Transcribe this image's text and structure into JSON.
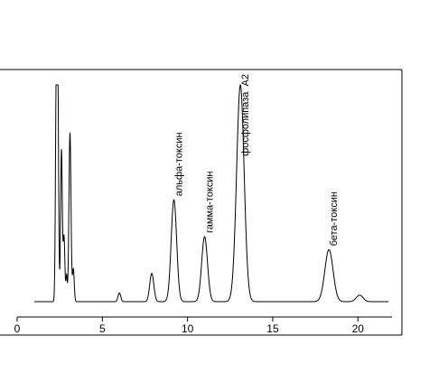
{
  "chart_data": {
    "type": "line",
    "title": "",
    "xlabel": "",
    "ylabel": "",
    "xlim": [
      0,
      22
    ],
    "ylim": [
      0,
      1
    ],
    "grid": false,
    "x_ticks": [
      0,
      5,
      10,
      15,
      20
    ],
    "x_tick_labels": [
      "0",
      "5",
      "10",
      "15",
      "20"
    ],
    "series": [
      {
        "baseline": 0.0,
        "color": "#000000",
        "peaks": [
          {
            "center": 2.3,
            "height": 1.0,
            "width": 0.05
          },
          {
            "center": 2.38,
            "height": 1.0,
            "width": 0.05
          },
          {
            "center": 2.6,
            "height": 0.7,
            "width": 0.05
          },
          {
            "center": 2.75,
            "height": 0.3,
            "width": 0.05
          },
          {
            "center": 2.9,
            "height": 0.12,
            "width": 0.04
          },
          {
            "center": 3.1,
            "height": 0.78,
            "width": 0.06
          },
          {
            "center": 3.3,
            "height": 0.15,
            "width": 0.05
          },
          {
            "center": 6.0,
            "height": 0.04,
            "width": 0.08
          },
          {
            "center": 7.9,
            "height": 0.13,
            "width": 0.12
          },
          {
            "center": 9.2,
            "height": 0.47,
            "width": 0.16
          },
          {
            "center": 11.0,
            "height": 0.3,
            "width": 0.17
          },
          {
            "center": 13.1,
            "height": 1.0,
            "width": 0.22
          },
          {
            "center": 18.3,
            "height": 0.24,
            "width": 0.24
          },
          {
            "center": 20.1,
            "height": 0.03,
            "width": 0.2
          }
        ]
      }
    ],
    "annotations": [
      {
        "text": "альфа-токсин",
        "x": 9.2
      },
      {
        "text": "гамма-токсин",
        "x": 11.0
      },
      {
        "text": "фосфолипаза  А2",
        "x": 13.1
      },
      {
        "text": "бета-токсин",
        "x": 18.3
      }
    ]
  }
}
